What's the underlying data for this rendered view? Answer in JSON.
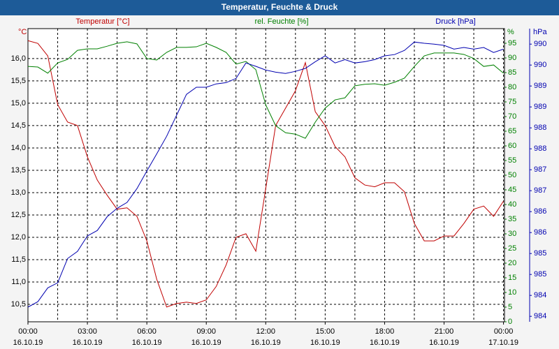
{
  "chart_data": {
    "type": "line",
    "title": "Temperatur, Feuchte & Druck",
    "x": [
      0,
      0.5,
      1,
      1.5,
      2,
      2.5,
      3,
      3.5,
      4,
      4.5,
      5,
      5.5,
      6,
      6.5,
      7,
      7.5,
      8,
      8.5,
      9,
      9.5,
      10,
      10.5,
      11,
      11.5,
      12,
      12.5,
      13,
      13.5,
      14,
      14.5,
      15,
      15.5,
      16,
      16.5,
      17,
      17.5,
      18,
      18.5,
      19,
      19.5,
      20,
      20.5,
      21,
      21.5,
      22,
      22.5,
      23,
      23.5,
      24
    ],
    "xlim": [
      0,
      24.05
    ],
    "xticks": [
      {
        "value": 0,
        "label": "00:00",
        "date": "16.10.19"
      },
      {
        "value": 3,
        "label": "03:00",
        "date": "16.10.19"
      },
      {
        "value": 6,
        "label": "06:00",
        "date": "16.10.19"
      },
      {
        "value": 9,
        "label": "09:00",
        "date": "16.10.19"
      },
      {
        "value": 12,
        "label": "12:00",
        "date": "16.10.19"
      },
      {
        "value": 15,
        "label": "15:00",
        "date": "16.10.19"
      },
      {
        "value": 18,
        "label": "18:00",
        "date": "16.10.19"
      },
      {
        "value": 21,
        "label": "21:00",
        "date": "16.10.19"
      },
      {
        "value": 24,
        "label": "00:00",
        "date": "17.10.19"
      }
    ],
    "xminor": [
      1.5,
      4.5,
      7.5,
      10.5,
      13.5,
      16.5,
      19.5,
      22.5
    ],
    "grid": true,
    "y_unit": "°C",
    "ylim": [
      10.11,
      16.67
    ],
    "yticks": [
      {
        "value": 10.5,
        "label": "10,5"
      },
      {
        "value": 11.0,
        "label": "11,0"
      },
      {
        "value": 11.5,
        "label": "11,5"
      },
      {
        "value": 12.0,
        "label": "12,0"
      },
      {
        "value": 12.5,
        "label": "12,5"
      },
      {
        "value": 13.0,
        "label": "13,0"
      },
      {
        "value": 13.5,
        "label": "13,5"
      },
      {
        "value": 14.0,
        "label": "14,0"
      },
      {
        "value": 14.5,
        "label": "14,5"
      },
      {
        "value": 15.0,
        "label": "15,0"
      },
      {
        "value": 15.5,
        "label": "15,5"
      },
      {
        "value": 16.0,
        "label": "16,0"
      }
    ],
    "y2_unit": "%",
    "y2lim": [
      0,
      100
    ],
    "y2ticks": [
      0,
      5,
      10,
      15,
      20,
      25,
      30,
      35,
      40,
      45,
      50,
      55,
      60,
      65,
      70,
      75,
      80,
      85,
      90,
      95
    ],
    "y3_unit": "hPa",
    "y3lim": [
      983.67,
      990.67
    ],
    "y3ticks": [
      {
        "value": 983.8,
        "label": "984"
      },
      {
        "value": 984.3,
        "label": "984"
      },
      {
        "value": 984.8,
        "label": "985"
      },
      {
        "value": 985.3,
        "label": "985"
      },
      {
        "value": 985.8,
        "label": "986"
      },
      {
        "value": 986.3,
        "label": "986"
      },
      {
        "value": 986.8,
        "label": "987"
      },
      {
        "value": 987.3,
        "label": "987"
      },
      {
        "value": 987.8,
        "label": "988"
      },
      {
        "value": 988.3,
        "label": "988"
      },
      {
        "value": 988.8,
        "label": "989"
      },
      {
        "value": 989.3,
        "label": "989"
      },
      {
        "value": 989.8,
        "label": "990"
      },
      {
        "value": 990.3,
        "label": "990"
      }
    ],
    "series": [
      {
        "name": "Temperatur [°C]",
        "color": "#c00000",
        "axis": "y",
        "values": [
          16.4,
          16.34,
          16.06,
          14.97,
          14.58,
          14.5,
          13.8,
          13.28,
          12.94,
          12.63,
          12.66,
          12.47,
          11.92,
          11.06,
          10.44,
          10.52,
          10.55,
          10.52,
          10.6,
          10.9,
          11.38,
          12.0,
          12.08,
          11.69,
          13.09,
          14.5,
          14.89,
          15.28,
          15.91,
          14.81,
          14.5,
          14.03,
          13.8,
          13.33,
          13.17,
          13.13,
          13.22,
          13.22,
          13.02,
          12.31,
          11.92,
          11.92,
          12.03,
          12.03,
          12.31,
          12.63,
          12.7,
          12.47,
          12.81
        ]
      },
      {
        "name": "rel. Feuchte [%]",
        "color": "#008000",
        "axis": "y2",
        "values": [
          87.1,
          86.9,
          84.8,
          88.3,
          89.5,
          92.6,
          93.1,
          93.1,
          94,
          95,
          95.5,
          94.8,
          89.8,
          89.3,
          91.9,
          93.6,
          93.6,
          93.8,
          95,
          93.6,
          91.9,
          87.9,
          88.8,
          86,
          74,
          66.9,
          64.5,
          64,
          62.6,
          68.1,
          72.9,
          75.7,
          76.4,
          80.5,
          81,
          81.2,
          80.7,
          81.7,
          83.1,
          87.1,
          90.7,
          91.7,
          91.7,
          91.7,
          91.2,
          89.8,
          87.1,
          87.6,
          84.8
        ]
      },
      {
        "name": "Druck [hPa]",
        "color": "#0000b0",
        "axis": "y3",
        "values": [
          984.02,
          984.15,
          984.48,
          984.6,
          985.18,
          985.35,
          985.72,
          985.85,
          986.18,
          986.38,
          986.52,
          986.85,
          987.27,
          987.68,
          988.1,
          988.6,
          989.1,
          989.27,
          989.27,
          989.35,
          989.38,
          989.48,
          989.85,
          989.77,
          989.68,
          989.63,
          989.6,
          989.65,
          989.72,
          989.88,
          990.02,
          989.85,
          989.93,
          989.85,
          989.88,
          989.93,
          990.02,
          990.05,
          990.15,
          990.35,
          990.32,
          990.3,
          990.27,
          990.18,
          990.22,
          990.18,
          990.22,
          990.1,
          990.18
        ]
      }
    ]
  }
}
